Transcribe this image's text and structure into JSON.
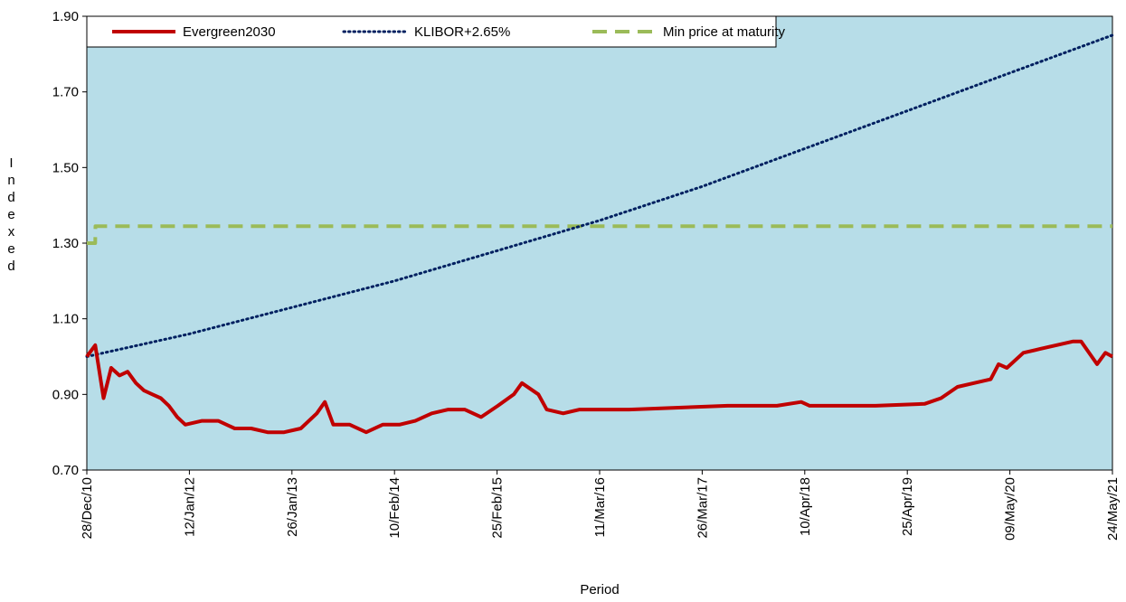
{
  "chart_data": {
    "type": "line",
    "xlabel": "Period",
    "ylabel": "Indexed",
    "ylim": [
      0.7,
      1.9
    ],
    "yticks": [
      {
        "value": 0.7,
        "label": "0.70"
      },
      {
        "value": 0.9,
        "label": "0.90"
      },
      {
        "value": 1.1,
        "label": "1.10"
      },
      {
        "value": 1.3,
        "label": "1.30"
      },
      {
        "value": 1.5,
        "label": "1.50"
      },
      {
        "value": 1.7,
        "label": "1.70"
      },
      {
        "value": 1.9,
        "label": "1.90"
      }
    ],
    "xlim": [
      "28/Dec/10",
      "24/May/21"
    ],
    "xticks": [
      "28/Dec/10",
      "12/Jan/12",
      "26/Jan/13",
      "10/Feb/14",
      "25/Feb/15",
      "11/Mar/16",
      "26/Mar/17",
      "10/Apr/18",
      "25/Apr/19",
      "09/May/20",
      "24/May/21"
    ],
    "background": "#b7dde8",
    "legend": "top-left",
    "series": [
      {
        "name": "Evergreen2030",
        "color": "#c00000",
        "style": "solid",
        "x": [
          "28/Dec/10",
          "28/Jan/11",
          "28/Feb/11",
          "28/Mar/11",
          "28/Apr/11",
          "28/May/11",
          "28/Jun/11",
          "28/Jul/11",
          "28/Aug/11",
          "28/Sep/11",
          "28/Oct/11",
          "28/Nov/11",
          "28/Dec/11",
          "28/Feb/12",
          "28/Apr/12",
          "28/Jun/12",
          "28/Aug/12",
          "28/Oct/12",
          "28/Dec/12",
          "28/Feb/13",
          "28/Apr/13",
          "28/May/13",
          "28/Jun/13",
          "28/Aug/13",
          "28/Oct/13",
          "28/Dec/13",
          "28/Feb/14",
          "28/Apr/14",
          "28/Jun/14",
          "28/Aug/14",
          "28/Oct/14",
          "28/Dec/14",
          "28/Feb/15",
          "28/Apr/15",
          "28/May/15",
          "28/Jul/15",
          "28/Aug/15",
          "28/Oct/15",
          "28/Dec/15",
          "28/Feb/16",
          "28/Jun/16",
          "28/Dec/16",
          "28/Jun/17",
          "28/Dec/17",
          "28/Mar/18",
          "28/Apr/18",
          "28/Dec/18",
          "28/Jun/19",
          "28/Aug/19",
          "28/Oct/19",
          "28/Dec/19",
          "28/Feb/20",
          "28/Mar/20",
          "28/Apr/20",
          "28/Jun/20",
          "28/Aug/20",
          "28/Oct/20",
          "28/Dec/20",
          "28/Jan/21",
          "28/Mar/21",
          "28/Apr/21",
          "24/May/21"
        ],
        "values": [
          1.0,
          1.03,
          0.89,
          0.97,
          0.95,
          0.96,
          0.93,
          0.91,
          0.9,
          0.89,
          0.87,
          0.84,
          0.82,
          0.83,
          0.83,
          0.81,
          0.81,
          0.8,
          0.8,
          0.81,
          0.85,
          0.88,
          0.82,
          0.82,
          0.8,
          0.82,
          0.82,
          0.83,
          0.85,
          0.86,
          0.86,
          0.84,
          0.87,
          0.9,
          0.93,
          0.9,
          0.86,
          0.85,
          0.86,
          0.86,
          0.86,
          0.865,
          0.87,
          0.87,
          0.88,
          0.87,
          0.87,
          0.875,
          0.89,
          0.92,
          0.93,
          0.94,
          0.98,
          0.97,
          1.01,
          1.02,
          1.03,
          1.04,
          1.04,
          0.98,
          1.01,
          1.0
        ]
      },
      {
        "name": "KLIBOR+2.65%",
        "color": "#002060",
        "style": "dotted",
        "x": [
          "28/Dec/10",
          "12/Jan/12",
          "26/Jan/13",
          "10/Feb/14",
          "25/Feb/15",
          "11/Mar/16",
          "26/Mar/17",
          "10/Apr/18",
          "25/Apr/19",
          "09/May/20",
          "24/May/21"
        ],
        "values": [
          1.0,
          1.06,
          1.13,
          1.2,
          1.28,
          1.36,
          1.45,
          1.55,
          1.65,
          1.75,
          1.85
        ]
      },
      {
        "name": "Min price at maturity",
        "color": "#9bbb59",
        "style": "dashed",
        "x": [
          "28/Dec/10",
          "28/Jan/11",
          "29/Jan/11",
          "24/May/21"
        ],
        "values": [
          1.3,
          1.3,
          1.345,
          1.345
        ]
      }
    ]
  }
}
